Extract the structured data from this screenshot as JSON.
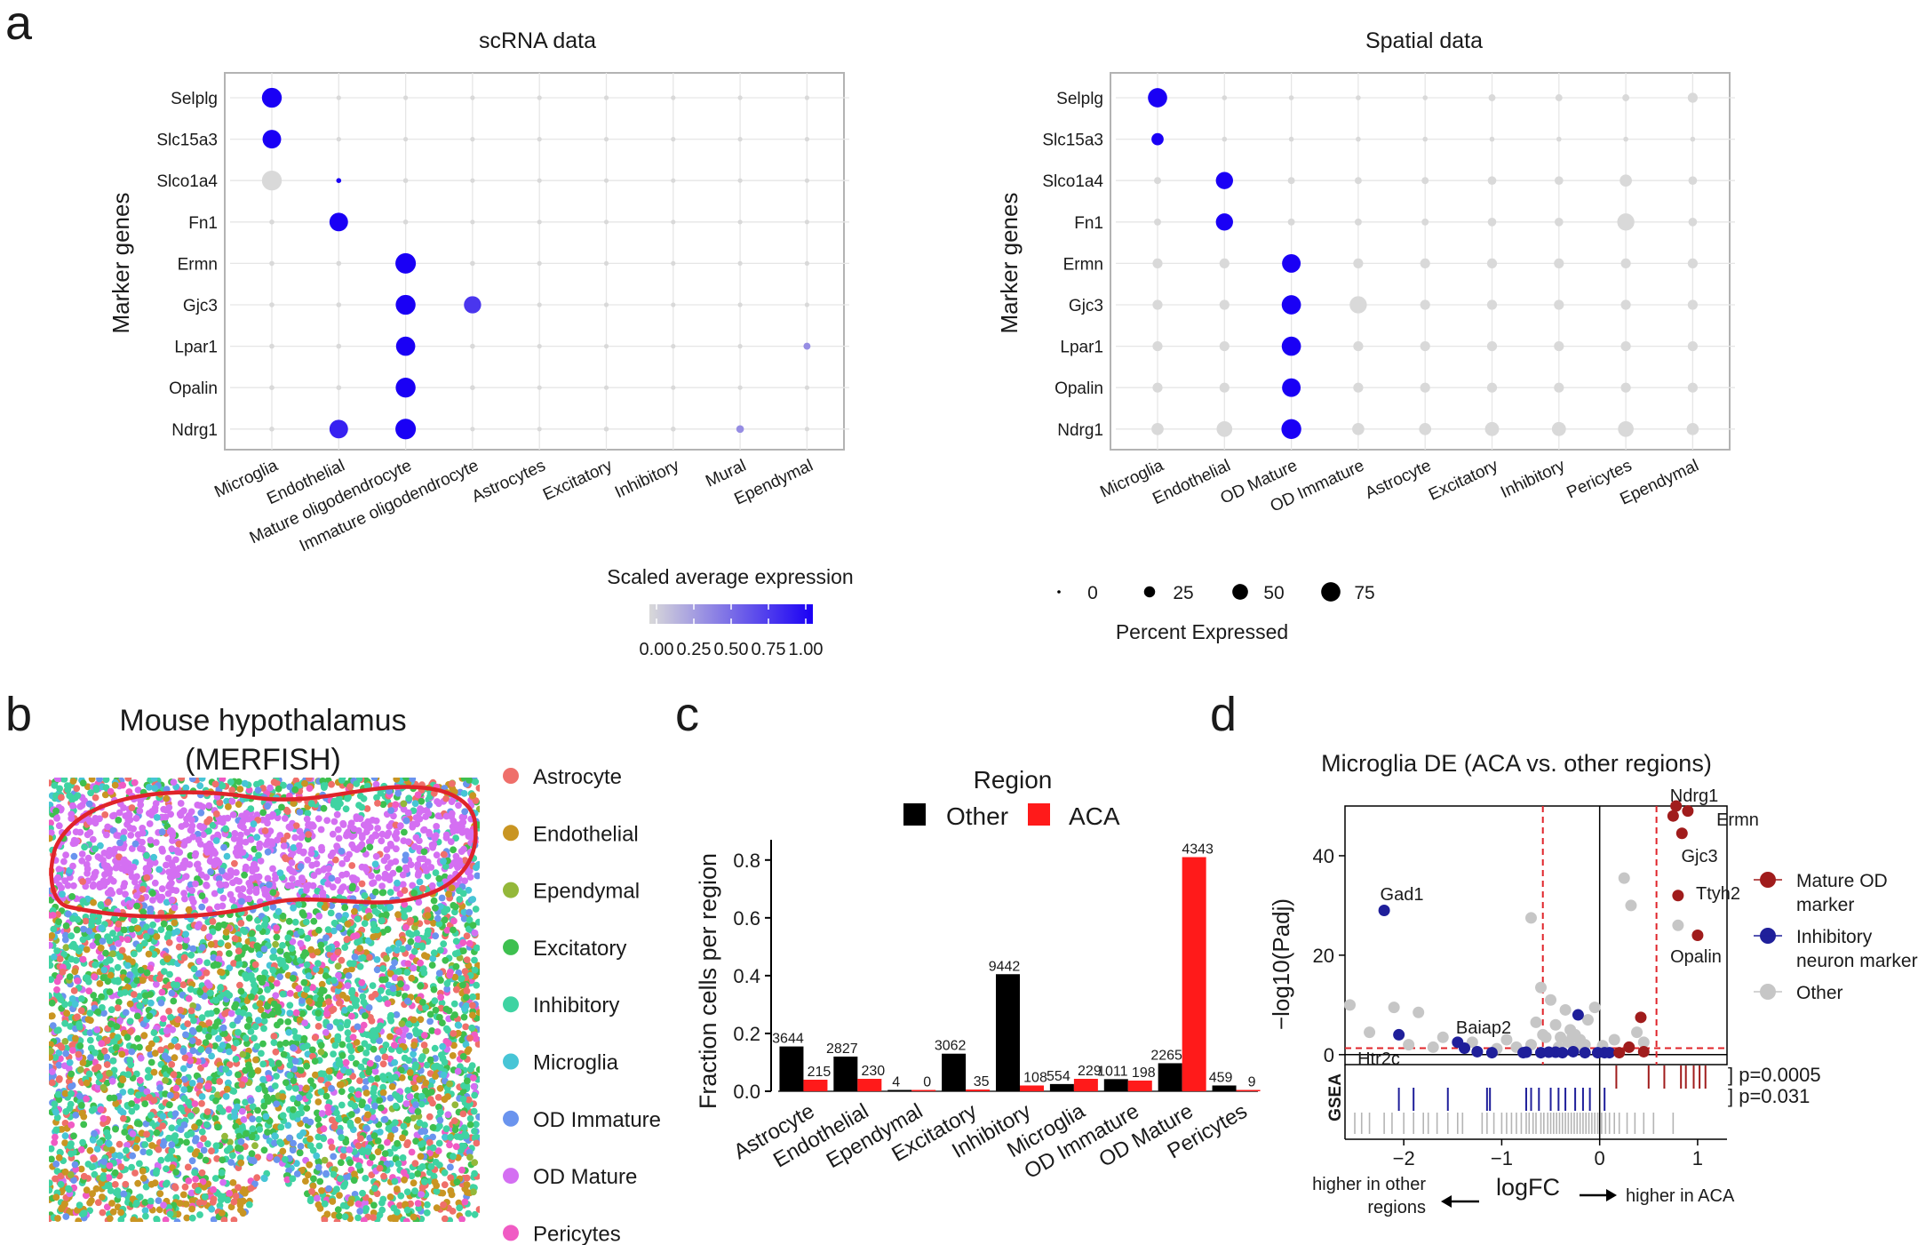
{
  "panel_labels": [
    "a",
    "b",
    "c",
    "d"
  ],
  "colors": {
    "dot_low": "#d9d9d9",
    "dot_high": "#1a00f5",
    "bar_other": "#000000",
    "bar_aca": "#ff1a1a",
    "mature_od": "#a01c1c",
    "inhibitory": "#1f1f9a",
    "other": "#c6c6c6",
    "region_outline": "#e0242a"
  },
  "chart_data": [
    {
      "id": "scrna",
      "type": "dot",
      "title": "scRNA data",
      "ylabel": "Marker genes",
      "genes": [
        "Selplg",
        "Slc15a3",
        "Slco1a4",
        "Fn1",
        "Ermn",
        "Gjc3",
        "Lpar1",
        "Opalin",
        "Ndrg1"
      ],
      "celltypes": [
        "Microglia",
        "Endothelial",
        "Mature oligodendrocyte",
        "Immature oligodendrocyte",
        "Astrocytes",
        "Excitatory",
        "Inhibitory",
        "Mural",
        "Ependymal"
      ],
      "pct": [
        [
          80,
          2,
          2,
          2,
          2,
          2,
          2,
          2,
          2
        ],
        [
          70,
          2,
          2,
          2,
          2,
          2,
          2,
          2,
          2
        ],
        [
          80,
          5,
          5,
          2,
          2,
          2,
          2,
          2,
          2
        ],
        [
          5,
          70,
          5,
          2,
          2,
          2,
          2,
          2,
          2
        ],
        [
          5,
          5,
          85,
          5,
          2,
          2,
          2,
          2,
          2
        ],
        [
          5,
          5,
          80,
          60,
          2,
          2,
          2,
          2,
          2
        ],
        [
          5,
          5,
          75,
          5,
          2,
          2,
          2,
          2,
          10
        ],
        [
          5,
          5,
          80,
          5,
          2,
          2,
          2,
          2,
          2
        ],
        [
          5,
          70,
          85,
          2,
          2,
          5,
          5,
          12,
          2
        ]
      ],
      "expr": [
        [
          1,
          0,
          0,
          0,
          0,
          0,
          0,
          0,
          0
        ],
        [
          1,
          0,
          0,
          0,
          0,
          0,
          0,
          0,
          0
        ],
        [
          0,
          1,
          0,
          0,
          0,
          0,
          0,
          0,
          0
        ],
        [
          0,
          1,
          0,
          0,
          0,
          0,
          0,
          0,
          0
        ],
        [
          0,
          0,
          1,
          0,
          0,
          0,
          0,
          0,
          0
        ],
        [
          0,
          0,
          1,
          0.75,
          0,
          0,
          0,
          0,
          0
        ],
        [
          0,
          0,
          1,
          0,
          0,
          0,
          0,
          0,
          0.35
        ],
        [
          0,
          0,
          1,
          0,
          0,
          0,
          0,
          0,
          0
        ],
        [
          0,
          0.85,
          1,
          0,
          0,
          0,
          0,
          0.35,
          0
        ]
      ],
      "legend_title": "Scaled average expression",
      "legend_ticks": [
        "0.00",
        "0.25",
        "0.50",
        "0.75",
        "1.00"
      ]
    },
    {
      "id": "spatial",
      "type": "dot",
      "title": "Spatial data",
      "ylabel": "Marker genes",
      "genes": [
        "Selplg",
        "Slc15a3",
        "Slco1a4",
        "Fn1",
        "Ermn",
        "Gjc3",
        "Lpar1",
        "Opalin",
        "Ndrg1"
      ],
      "celltypes": [
        "Microglia",
        "Endothelial",
        "OD Mature",
        "OD Immature",
        "Astrocyte",
        "Excitatory",
        "Inhibitory",
        "Pericytes",
        "Ependymal"
      ],
      "pct": [
        [
          75,
          5,
          5,
          5,
          5,
          10,
          10,
          10,
          20
        ],
        [
          30,
          5,
          5,
          5,
          5,
          5,
          5,
          5,
          5
        ],
        [
          10,
          60,
          10,
          10,
          10,
          15,
          15,
          30,
          15
        ],
        [
          10,
          60,
          10,
          10,
          10,
          15,
          15,
          60,
          15
        ],
        [
          20,
          20,
          70,
          20,
          20,
          20,
          20,
          20,
          20
        ],
        [
          20,
          20,
          75,
          60,
          20,
          20,
          20,
          20,
          20
        ],
        [
          20,
          20,
          75,
          20,
          20,
          20,
          20,
          20,
          20
        ],
        [
          20,
          20,
          70,
          20,
          20,
          20,
          20,
          20,
          20
        ],
        [
          30,
          50,
          80,
          30,
          30,
          40,
          40,
          50,
          30
        ]
      ],
      "expr": [
        [
          1,
          0,
          0,
          0,
          0,
          0,
          0,
          0,
          0
        ],
        [
          1,
          0,
          0,
          0,
          0,
          0,
          0,
          0,
          0
        ],
        [
          0,
          1,
          0,
          0,
          0,
          0,
          0,
          0,
          0
        ],
        [
          0,
          1,
          0,
          0,
          0,
          0,
          0,
          0,
          0
        ],
        [
          0,
          0,
          1,
          0,
          0,
          0,
          0,
          0,
          0
        ],
        [
          0,
          0,
          1,
          0,
          0,
          0,
          0,
          0,
          0
        ],
        [
          0,
          0,
          1,
          0,
          0,
          0,
          0,
          0,
          0
        ],
        [
          0,
          0,
          1,
          0,
          0,
          0,
          0,
          0,
          0
        ],
        [
          0,
          0,
          1,
          0,
          0,
          0,
          0,
          0,
          0
        ]
      ],
      "legend_title": "Percent Expressed",
      "legend_values": [
        0,
        25,
        50,
        75
      ],
      "legend_labels": [
        "0",
        "25",
        "50",
        "75"
      ]
    },
    {
      "id": "merfish",
      "type": "scatter",
      "title_line1": "Mouse hypothalamus",
      "title_line2": "(MERFISH)",
      "categories": [
        "Astrocyte",
        "Endothelial",
        "Ependymal",
        "Excitatory",
        "Inhibitory",
        "Microglia",
        "OD Immature",
        "OD Mature",
        "Pericytes"
      ],
      "colors": [
        "#ef6f6a",
        "#c99522",
        "#94b83a",
        "#3ec04f",
        "#3fd3a2",
        "#47c5d6",
        "#6a94ee",
        "#d46ff2",
        "#f05bc4"
      ]
    },
    {
      "id": "fractions",
      "type": "bar",
      "ylabel": "Fraction cells per region",
      "legend_title": "Region",
      "categories": [
        "Astrocyte",
        "Endothelial",
        "Ependymal",
        "Excitatory",
        "Inhibitory",
        "Microglia",
        "OD Immature",
        "OD Mature",
        "Pericytes"
      ],
      "series": [
        {
          "name": "Other",
          "values": [
            0.155,
            0.12,
            0.0003,
            0.13,
            0.405,
            0.025,
            0.042,
            0.097,
            0.02
          ],
          "labels": [
            "3644",
            "2827",
            "4",
            "3062",
            "9442",
            "554",
            "1011",
            "2265",
            "459"
          ]
        },
        {
          "name": "ACA",
          "values": [
            0.04,
            0.043,
            0.0,
            0.006,
            0.02,
            0.043,
            0.037,
            0.81,
            0.002
          ],
          "labels": [
            "215",
            "230",
            "0",
            "35",
            "108",
            "229",
            "198",
            "4343",
            "9"
          ]
        }
      ],
      "ylim": [
        0,
        0.87
      ],
      "yticks": [
        0.0,
        0.2,
        0.4,
        0.6,
        0.8
      ],
      "ytick_labels": [
        "0.0",
        "0.2",
        "0.4",
        "0.6",
        "0.8"
      ]
    },
    {
      "id": "volcano",
      "type": "scatter",
      "title": "Microglia DE (ACA vs. other regions)",
      "xlabel": "logFC",
      "ylabel": "−log10(Padj)",
      "xlim": [
        -2.6,
        1.3
      ],
      "ylim": [
        -2,
        50
      ],
      "xticks": [
        -2,
        -1,
        0,
        1
      ],
      "xtick_labels": [
        "−2",
        "−1",
        "0",
        "1"
      ],
      "yticks": [
        0,
        20,
        40
      ],
      "ytick_labels": [
        "0",
        "20",
        "40"
      ],
      "vlines": [
        -0.58,
        0.58
      ],
      "hline": 1.3,
      "mature_od": [
        [
          0.78,
          50
        ],
        [
          0.9,
          49
        ],
        [
          0.75,
          48
        ],
        [
          0.84,
          44.5
        ],
        [
          0.8,
          32
        ],
        [
          1.0,
          24
        ],
        [
          0.42,
          7.5
        ],
        [
          0.3,
          1.5
        ],
        [
          0.45,
          0.6
        ],
        [
          0.2,
          0.4
        ]
      ],
      "inhibitory": [
        [
          -2.2,
          29
        ],
        [
          -2.05,
          4
        ],
        [
          -1.45,
          2.5
        ],
        [
          -1.38,
          1.3
        ],
        [
          -1.25,
          0.6
        ],
        [
          -1.1,
          0.4
        ],
        [
          -0.75,
          0.5
        ],
        [
          -0.6,
          0.4
        ],
        [
          -0.45,
          0.5
        ],
        [
          -0.38,
          0.4
        ],
        [
          -0.22,
          8
        ],
        [
          -0.27,
          0.6
        ],
        [
          -0.15,
          0.4
        ],
        [
          -0.02,
          0.4
        ],
        [
          0.05,
          0.4
        ],
        [
          0.1,
          0.4
        ],
        [
          -0.78,
          0.4
        ],
        [
          -0.52,
          0.5
        ]
      ],
      "other": [
        [
          -2.55,
          10
        ],
        [
          -2.35,
          4.5
        ],
        [
          -2.1,
          9.5
        ],
        [
          -1.95,
          2
        ],
        [
          -1.85,
          8.5
        ],
        [
          -1.7,
          1.5
        ],
        [
          -1.6,
          3.5
        ],
        [
          -1.3,
          2.5
        ],
        [
          -1.05,
          1.2
        ],
        [
          -0.95,
          3
        ],
        [
          -0.85,
          1.5
        ],
        [
          -0.7,
          27.5
        ],
        [
          -0.65,
          6.5
        ],
        [
          -0.6,
          13.5
        ],
        [
          -0.55,
          3.5
        ],
        [
          -0.5,
          11
        ],
        [
          -0.45,
          6
        ],
        [
          -0.4,
          3.5
        ],
        [
          -0.35,
          9
        ],
        [
          -0.3,
          5
        ],
        [
          -0.25,
          4
        ],
        [
          -0.2,
          3
        ],
        [
          -0.15,
          2
        ],
        [
          -0.12,
          7
        ],
        [
          -0.05,
          9.5
        ],
        [
          0.03,
          1.8
        ],
        [
          0.15,
          3
        ],
        [
          0.25,
          35.5
        ],
        [
          0.32,
          30
        ],
        [
          0.38,
          4.5
        ],
        [
          0.45,
          2.5
        ],
        [
          0.8,
          26
        ],
        [
          -0.7,
          2
        ],
        [
          -0.58,
          4
        ],
        [
          -0.32,
          2.5
        ],
        [
          -0.22,
          1.5
        ],
        [
          -0.28,
          3.5
        ],
        [
          -0.42,
          1.5
        ]
      ],
      "labels_od": [
        "Ndrg1",
        "Ermn",
        "Gjc3",
        "Ttyh2",
        "Opalin"
      ],
      "labels_inh": [
        "Gad1",
        "Htr2c",
        "Baiap2"
      ],
      "gsea_label": "GSEA",
      "gsea_mature_od": [
        0.17,
        0.5,
        0.66,
        0.83,
        0.88,
        0.96,
        1.02,
        1.08
      ],
      "gsea_inhibitory": [
        -2.05,
        -1.9,
        -1.55,
        -1.15,
        -1.12,
        -0.75,
        -0.7,
        -0.62,
        -0.5,
        -0.42,
        -0.35,
        -0.25,
        -0.17,
        -0.1,
        0.05
      ],
      "gsea_other": [
        -2.5,
        -2.43,
        -2.35,
        -2.2,
        -2.12,
        -2.0,
        -1.9,
        -1.8,
        -1.75,
        -1.66,
        -1.55,
        -1.45,
        -1.4,
        -1.2,
        -1.15,
        -1.08,
        -1.0,
        -0.95,
        -0.9,
        -0.85,
        -0.8,
        -0.75,
        -0.72,
        -0.68,
        -0.65,
        -0.6,
        -0.57,
        -0.53,
        -0.5,
        -0.47,
        -0.44,
        -0.41,
        -0.38,
        -0.35,
        -0.32,
        -0.29,
        -0.26,
        -0.23,
        -0.2,
        -0.17,
        -0.14,
        -0.11,
        -0.08,
        -0.05,
        -0.02,
        0.02,
        0.06,
        0.1,
        0.15,
        0.2,
        0.28,
        0.36,
        0.45,
        0.55,
        0.75
      ],
      "pvalues": [
        "] p=0.0005",
        "] p=0.031"
      ],
      "legend": [
        "Mature OD",
        "marker",
        "Inhibitory",
        "neuron marker",
        "Other"
      ],
      "arrow_left_line1": "higher in other",
      "arrow_left_line2": "regions",
      "arrow_right": "higher in ACA"
    }
  ]
}
